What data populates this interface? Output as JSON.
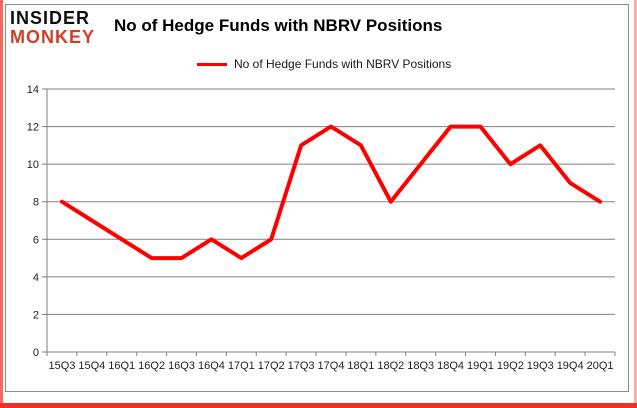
{
  "logo": {
    "line1": "INSIDER",
    "line2": "MONKEY"
  },
  "title": "No of Hedge Funds with NBRV Positions",
  "legend": {
    "label": "No of Hedge Funds with NBRV Positions"
  },
  "colors": {
    "line": "#ff0000",
    "grid": "#808080",
    "axis_text": "#1f1f1f",
    "logo_red": "#cf3e27",
    "border_red": "#ee3124",
    "frame_gray": "#8c8c8c"
  },
  "chart_data": {
    "type": "line",
    "title": "No of Hedge Funds with NBRV Positions",
    "categories": [
      "15Q3",
      "15Q4",
      "16Q1",
      "16Q2",
      "16Q3",
      "16Q4",
      "17Q1",
      "17Q2",
      "17Q3",
      "17Q4",
      "18Q1",
      "18Q2",
      "18Q3",
      "18Q4",
      "19Q1",
      "19Q2",
      "19Q3",
      "19Q4",
      "20Q1"
    ],
    "values": [
      8,
      7,
      6,
      5,
      5,
      6,
      5,
      6,
      11,
      12,
      11,
      8,
      10,
      12,
      12,
      10,
      11,
      9,
      8
    ],
    "series": [
      {
        "name": "No of Hedge Funds with NBRV Positions",
        "values": [
          8,
          7,
          6,
          5,
          5,
          6,
          5,
          6,
          11,
          12,
          11,
          8,
          10,
          12,
          12,
          10,
          11,
          9,
          8
        ]
      }
    ],
    "xlabel": "",
    "ylabel": "",
    "ylim": [
      0,
      14
    ],
    "yticks": [
      0,
      2,
      4,
      6,
      8,
      10,
      12,
      14
    ],
    "grid": true,
    "legend_position": "top-center",
    "line_color": "#ff0000"
  }
}
